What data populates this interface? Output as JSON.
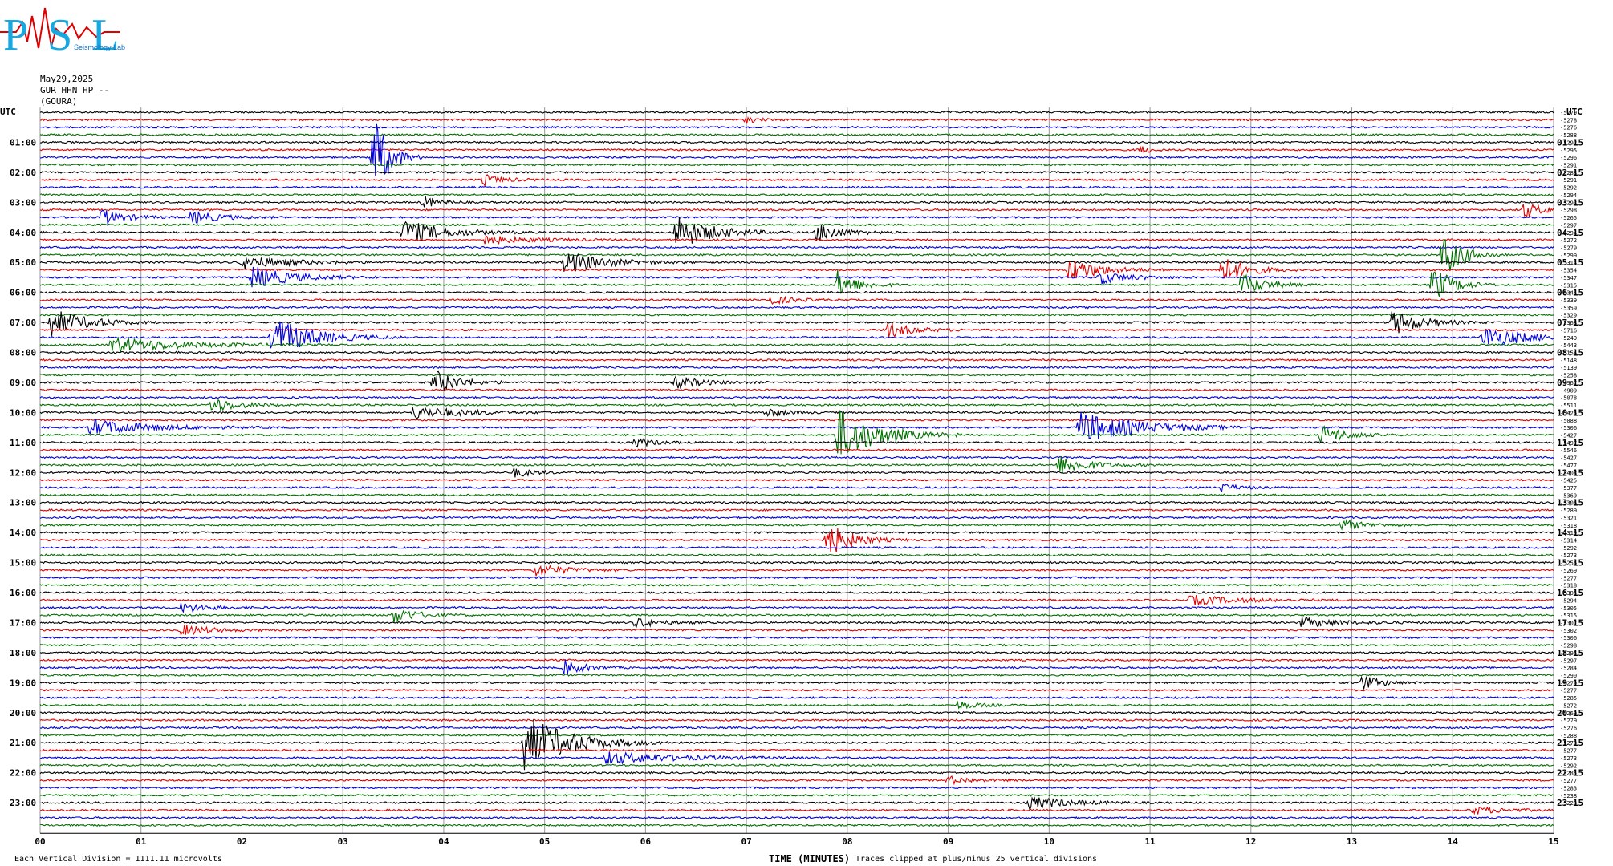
{
  "header": {
    "logo_text": "PSL",
    "logo_subtext": "Seismology Lab",
    "date": "May29,2025",
    "station": "GUR HHN HP --",
    "site": "(GOURA)"
  },
  "chart_data": {
    "type": "line",
    "title": "",
    "left_axis_label": "UTC",
    "right_axis_label": "UTC",
    "xlabel": "TIME (MINUTES)",
    "xlim": [
      0,
      15
    ],
    "x_ticks": [
      "00",
      "01",
      "02",
      "03",
      "04",
      "05",
      "06",
      "07",
      "08",
      "09",
      "10",
      "11",
      "12",
      "13",
      "14",
      "15"
    ],
    "grid": "vertical lines each minute",
    "left_hour_labels": [
      "01:00",
      "02:00",
      "03:00",
      "04:00",
      "05:00",
      "06:00",
      "07:00",
      "08:00",
      "09:00",
      "10:00",
      "11:00",
      "12:00",
      "13:00",
      "14:00",
      "15:00",
      "16:00",
      "17:00",
      "18:00",
      "19:00",
      "20:00",
      "21:00",
      "22:00",
      "23:00"
    ],
    "right_hour_labels": [
      "01:15",
      "02:15",
      "03:15",
      "04:15",
      "05:15",
      "06:15",
      "07:15",
      "08:15",
      "09:15",
      "10:15",
      "11:15",
      "12:15",
      "13:15",
      "14:15",
      "15:15",
      "16:15",
      "17:15",
      "18:15",
      "19:15",
      "20:15",
      "21:15",
      "22:15",
      "23:15"
    ],
    "trace_colors": [
      "#000000",
      "#e00000",
      "#0000e0",
      "#007000"
    ],
    "trace_count": 96,
    "trace_offsets": [
      "-5279",
      "-5278",
      "-5276",
      "-5288",
      "-5292",
      "-5295",
      "-5296",
      "-5291",
      "-5288",
      "-5291",
      "-5292",
      "-5294",
      "-5293",
      "-5298",
      "-5265",
      "-5297",
      "-5294",
      "-5272",
      "-5279",
      "-5299",
      "-5314",
      "-5354",
      "-5347",
      "-5315",
      "-5345",
      "-5339",
      "-5359",
      "-5329",
      "-5368",
      "-5716",
      "-5249",
      "-5443",
      "-5154",
      "-5148",
      "-5139",
      "-5258",
      "-4967",
      "-4909",
      "-5078",
      "-5511",
      "-5426",
      "-5088",
      "-5306",
      "-5427",
      "-5497",
      "-5546",
      "-5427",
      "-5477",
      "-5408",
      "-5425",
      "-5377",
      "-5369",
      "-5306",
      "-5289",
      "-5321",
      "-5318",
      "-5319",
      "-5314",
      "-5292",
      "-5273",
      "-5256",
      "-5269",
      "-5277",
      "-5318",
      "-5305",
      "-5294",
      "-5305",
      "-5315",
      "-5307",
      "-5302",
      "-5306",
      "-5298",
      "-5295",
      "-5297",
      "-5284",
      "-5290",
      "-5279",
      "-5277",
      "-5285",
      "-5272",
      "-5269",
      "-5279",
      "-5276",
      "-5288",
      "-5279",
      "-5277",
      "-5273",
      "-5292",
      "-5285",
      "-5277",
      "-5283",
      "-5238",
      "-5223"
    ],
    "footer_left": "Each Vertical Division = 1111.11 microvolts",
    "footer_right": "Traces clipped at plus/minus 25 vertical divisions",
    "events": [
      {
        "row": 1,
        "minute": 7.0,
        "amp": 4,
        "dur": 0.25
      },
      {
        "row": 5,
        "minute": 10.9,
        "amp": 6,
        "dur": 0.2
      },
      {
        "row": 6,
        "minute": 3.3,
        "amp": 60,
        "dur": 0.3
      },
      {
        "row": 9,
        "minute": 4.4,
        "amp": 7,
        "dur": 0.4
      },
      {
        "row": 12,
        "minute": 3.8,
        "amp": 8,
        "dur": 0.3
      },
      {
        "row": 13,
        "minute": 14.7,
        "amp": 10,
        "dur": 0.4
      },
      {
        "row": 14,
        "minute": 0.6,
        "amp": 10,
        "dur": 0.5
      },
      {
        "row": 14,
        "minute": 1.5,
        "amp": 8,
        "dur": 0.6
      },
      {
        "row": 16,
        "minute": 3.6,
        "amp": 16,
        "dur": 0.8
      },
      {
        "row": 16,
        "minute": 6.3,
        "amp": 22,
        "dur": 0.7
      },
      {
        "row": 16,
        "minute": 7.7,
        "amp": 12,
        "dur": 0.5
      },
      {
        "row": 17,
        "minute": 4.4,
        "amp": 5,
        "dur": 1.0
      },
      {
        "row": 19,
        "minute": 13.9,
        "amp": 30,
        "dur": 0.4
      },
      {
        "row": 20,
        "minute": 5.2,
        "amp": 14,
        "dur": 0.8
      },
      {
        "row": 20,
        "minute": 2.0,
        "amp": 8,
        "dur": 1.0
      },
      {
        "row": 21,
        "minute": 10.2,
        "amp": 16,
        "dur": 0.6
      },
      {
        "row": 21,
        "minute": 11.7,
        "amp": 18,
        "dur": 0.5
      },
      {
        "row": 22,
        "minute": 2.1,
        "amp": 14,
        "dur": 0.8
      },
      {
        "row": 22,
        "minute": 10.5,
        "amp": 8,
        "dur": 0.6
      },
      {
        "row": 23,
        "minute": 7.9,
        "amp": 18,
        "dur": 0.4
      },
      {
        "row": 23,
        "minute": 11.9,
        "amp": 14,
        "dur": 0.5
      },
      {
        "row": 23,
        "minute": 13.8,
        "amp": 24,
        "dur": 0.4
      },
      {
        "row": 25,
        "minute": 7.2,
        "amp": 6,
        "dur": 0.5
      },
      {
        "row": 28,
        "minute": 0.1,
        "amp": 18,
        "dur": 0.7
      },
      {
        "row": 28,
        "minute": 13.4,
        "amp": 16,
        "dur": 0.6
      },
      {
        "row": 29,
        "minute": 8.4,
        "amp": 10,
        "dur": 0.5
      },
      {
        "row": 30,
        "minute": 2.3,
        "amp": 26,
        "dur": 0.8
      },
      {
        "row": 30,
        "minute": 14.3,
        "amp": 14,
        "dur": 0.9
      },
      {
        "row": 31,
        "minute": 0.7,
        "amp": 10,
        "dur": 1.4
      },
      {
        "row": 36,
        "minute": 3.9,
        "amp": 16,
        "dur": 0.5
      },
      {
        "row": 36,
        "minute": 6.3,
        "amp": 7,
        "dur": 0.6
      },
      {
        "row": 39,
        "minute": 1.7,
        "amp": 10,
        "dur": 0.5
      },
      {
        "row": 40,
        "minute": 3.7,
        "amp": 8,
        "dur": 1.0
      },
      {
        "row": 40,
        "minute": 7.2,
        "amp": 6,
        "dur": 0.4
      },
      {
        "row": 42,
        "minute": 10.3,
        "amp": 20,
        "dur": 1.2
      },
      {
        "row": 42,
        "minute": 0.5,
        "amp": 10,
        "dur": 1.2
      },
      {
        "row": 43,
        "minute": 7.9,
        "amp": 34,
        "dur": 0.8
      },
      {
        "row": 43,
        "minute": 12.7,
        "amp": 12,
        "dur": 0.5
      },
      {
        "row": 44,
        "minute": 5.9,
        "amp": 6,
        "dur": 0.4
      },
      {
        "row": 47,
        "minute": 10.1,
        "amp": 12,
        "dur": 0.6
      },
      {
        "row": 48,
        "minute": 4.7,
        "amp": 6,
        "dur": 0.4
      },
      {
        "row": 50,
        "minute": 11.7,
        "amp": 5,
        "dur": 0.4
      },
      {
        "row": 55,
        "minute": 12.9,
        "amp": 7,
        "dur": 0.5
      },
      {
        "row": 57,
        "minute": 7.8,
        "amp": 22,
        "dur": 0.5
      },
      {
        "row": 61,
        "minute": 4.9,
        "amp": 8,
        "dur": 0.6
      },
      {
        "row": 65,
        "minute": 11.4,
        "amp": 6,
        "dur": 1.0
      },
      {
        "row": 66,
        "minute": 1.4,
        "amp": 6,
        "dur": 0.6
      },
      {
        "row": 67,
        "minute": 3.5,
        "amp": 10,
        "dur": 0.5
      },
      {
        "row": 68,
        "minute": 5.9,
        "amp": 6,
        "dur": 0.5
      },
      {
        "row": 68,
        "minute": 12.5,
        "amp": 6,
        "dur": 0.8
      },
      {
        "row": 69,
        "minute": 1.4,
        "amp": 7,
        "dur": 0.6
      },
      {
        "row": 74,
        "minute": 5.2,
        "amp": 10,
        "dur": 0.4
      },
      {
        "row": 76,
        "minute": 13.1,
        "amp": 9,
        "dur": 0.4
      },
      {
        "row": 79,
        "minute": 9.1,
        "amp": 5,
        "dur": 0.4
      },
      {
        "row": 84,
        "minute": 4.8,
        "amp": 36,
        "dur": 0.9
      },
      {
        "row": 86,
        "minute": 5.6,
        "amp": 8,
        "dur": 1.4
      },
      {
        "row": 89,
        "minute": 9.0,
        "amp": 5,
        "dur": 0.5
      },
      {
        "row": 92,
        "minute": 9.8,
        "amp": 8,
        "dur": 0.8
      },
      {
        "row": 93,
        "minute": 14.2,
        "amp": 5,
        "dur": 0.6
      }
    ]
  }
}
